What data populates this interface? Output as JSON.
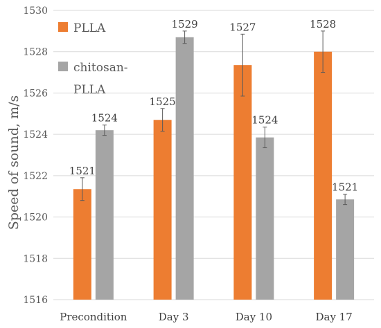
{
  "chart_data": {
    "type": "bar",
    "categories": [
      "Precondition",
      "Day 3",
      "Day 10",
      "Day 17"
    ],
    "ylabel": "Speed of sound, m/s",
    "ylim": [
      1516,
      1530
    ],
    "yticks": [
      1516,
      1518,
      1520,
      1522,
      1524,
      1526,
      1528,
      1530
    ],
    "grid": true,
    "legend_position": "top-left",
    "series": [
      {
        "name": "PLLA",
        "color": "#ED7D31",
        "values": [
          1521.35,
          1524.7,
          1527.35,
          1528.0
        ],
        "errors": [
          0.55,
          0.55,
          1.5,
          1.0
        ],
        "labels": [
          "1521",
          "1525",
          "1527",
          "1528"
        ]
      },
      {
        "name": "chitosan-PLLA",
        "color": "#A5A5A5",
        "values": [
          1524.2,
          1528.7,
          1523.85,
          1520.85
        ],
        "errors": [
          0.25,
          0.3,
          0.5,
          0.25
        ],
        "labels": [
          "1524",
          "1529",
          "1524",
          "1521"
        ]
      }
    ],
    "legend": [
      "PLLA",
      "chitosan-\nPLLA"
    ]
  }
}
